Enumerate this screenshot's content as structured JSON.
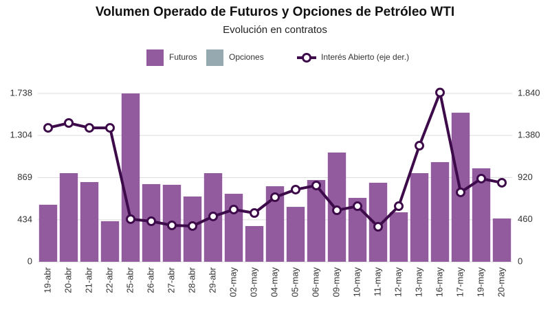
{
  "chart_data": {
    "type": "bar",
    "title": "Volumen Operado de Futuros y Opciones de Petróleo WTI",
    "subtitle": "Evolución en contratos",
    "categories": [
      "19-abr",
      "20-abr",
      "21-abr",
      "22-abr",
      "25-abr",
      "26-abr",
      "27-abr",
      "28-abr",
      "29-abr",
      "02-may",
      "03-may",
      "04-may",
      "05-may",
      "06-may",
      "09-may",
      "10-may",
      "11-may",
      "12-may",
      "13-may",
      "16-may",
      "17-may",
      "19-may",
      "20-may"
    ],
    "series": [
      {
        "name": "Futuros",
        "type": "bar",
        "color": "#915b9e",
        "values": [
          589,
          915,
          823,
          419,
          1738,
          802,
          795,
          674,
          915,
          702,
          369,
          780,
          567,
          844,
          1128,
          660,
          816,
          511,
          915,
          1029,
          1539,
          965,
          447
        ]
      },
      {
        "name": "Opciones",
        "type": "bar",
        "color": "#96a9b1",
        "values": [
          0,
          0,
          0,
          0,
          0,
          0,
          0,
          0,
          0,
          0,
          0,
          0,
          0,
          0,
          0,
          0,
          0,
          0,
          0,
          0,
          0,
          0,
          0
        ]
      },
      {
        "name": "Interés Abierto (eje der.)",
        "type": "line",
        "axis": "y2",
        "color": "#3d0a4a",
        "values": [
          1464,
          1517,
          1464,
          1464,
          466,
          443,
          398,
          391,
          496,
          571,
          533,
          706,
          789,
          834,
          563,
          608,
          383,
          608,
          1269,
          1850,
          759,
          909,
          864
        ]
      }
    ],
    "ylim": [
      0,
      1738
    ],
    "yticks": [
      0,
      434,
      869,
      {
        "value": 1304,
        "label": "1.304"
      },
      {
        "value": 1738,
        "label": "1.738"
      }
    ],
    "y2lim": [
      0,
      1840
    ],
    "y2ticks": [
      0,
      460,
      920,
      {
        "value": 1380,
        "label": "1.380"
      },
      {
        "value": 1840,
        "label": "1.840"
      }
    ],
    "grid": true,
    "legend": "top"
  }
}
